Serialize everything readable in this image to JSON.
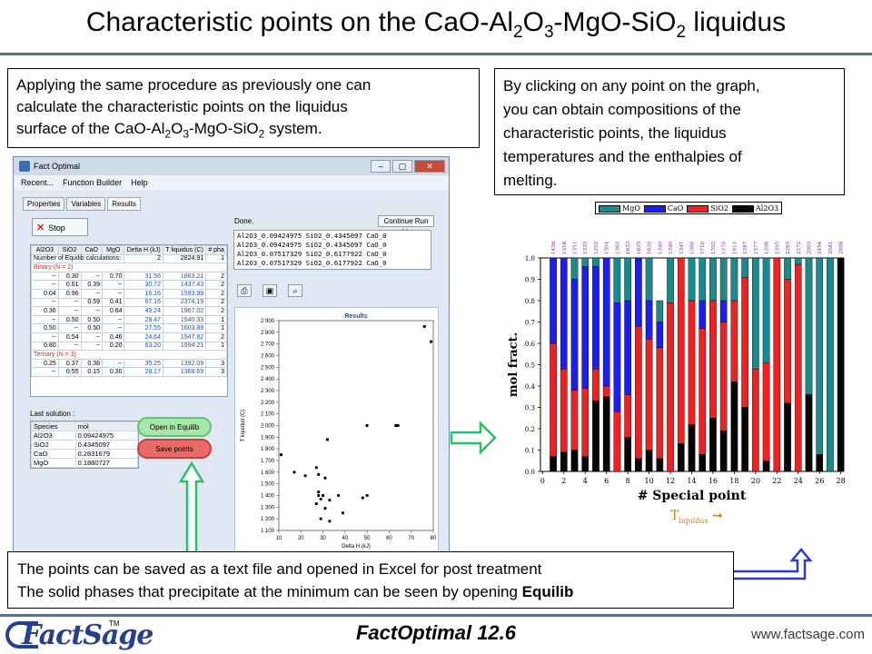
{
  "slide": {
    "title_parts": {
      "a": "Characteristic points on the CaO-Al",
      "s1": "2",
      "b": "O",
      "s2": "3",
      "c": "-MgO-SiO",
      "s3": "2",
      "d": " liquidus"
    },
    "intro": {
      "line1": "Applying the same procedure as previously one can",
      "line2": "calculate the characteristic points on the liquidus",
      "line3a": "surface of the CaO-Al",
      "sub1": "2",
      "line3b": "O",
      "sub2": "3",
      "line3c": "-MgO-SiO",
      "sub3": "2",
      "line3d": "  system."
    },
    "hint": {
      "line1": "By clicking on any point on the graph,",
      "line2": "you can obtain compositions of the",
      "line3": "characteristic points, the liquidus",
      "line4": "temperatures and the enthalpies of",
      "line5": "melting."
    },
    "note": {
      "line1": "The points can be saved as a text file and opened in Excel for post treatment",
      "line2a": "The solid phases that precipitate at the minimum can be seen by opening ",
      "line2b": "Equilib"
    },
    "footer": {
      "app_version": "FactOptimal   12.6",
      "url": "www.factsage.com",
      "logo_text": "FactSage",
      "logo_tm": "TM"
    }
  },
  "app": {
    "window_title": "Fact Optimal",
    "window_buttons": [
      "–",
      "▢",
      "✕"
    ],
    "menu": [
      "Recent...",
      "Function Builder",
      "Help"
    ],
    "tabs": [
      "Properties",
      "Variables",
      "Results"
    ],
    "stop_label": "Stop",
    "done_label": "Done.",
    "continue_label": "Continue Run >>",
    "log_lines": [
      "Al2O3_0.09424975 SiO2_0.4345097 CaO_0",
      "Al2O3_0.09424975 SiO2_0.4345097 CaO_0",
      "Al2O3_0.07517329 SiO2_0.6177922 CaO_0",
      "Al2O3_0.07517329 SiO2_0.6177922 CaO_0"
    ],
    "grid": {
      "headers": [
        "Al2O3",
        "SiO2",
        "CaO",
        "MgO",
        "Delta H (kJ)",
        "T liquidus (C)",
        "# pha"
      ],
      "info_label": "Number of Equilib calculations:",
      "info_values": [
        "2",
        "2824.91",
        "1"
      ],
      "binary_label": "Binary (N = 2)",
      "binary_rows": [
        [
          "--",
          "0.30",
          "--",
          "0.70",
          "31.56",
          "1863.21",
          "2"
        ],
        [
          "--",
          "0.61",
          "0.39",
          "--",
          "30.72",
          "1437.43",
          "2"
        ],
        [
          "0.04",
          "0.96",
          "--",
          "--",
          "16.16",
          "1593.99",
          "2"
        ],
        [
          "--",
          "--",
          "0.59",
          "0.41",
          "67.16",
          "2374.19",
          "2"
        ],
        [
          "0.36",
          "--",
          "--",
          "0.64",
          "49.24",
          "1967.02",
          "2"
        ],
        [
          "--",
          "0.50",
          "0.50",
          "--",
          "28.47",
          "1540.33",
          "1"
        ],
        [
          "0.50",
          "--",
          "0.50",
          "--",
          "27.55",
          "1603.88",
          "1"
        ],
        [
          "--",
          "0.54",
          "--",
          "0.46",
          "24.64",
          "1547.82",
          "2"
        ],
        [
          "0.80",
          "--",
          "--",
          "0.20",
          "63.20",
          "1994.21",
          "1"
        ]
      ],
      "ternary_label": "Ternary (N = 3)",
      "ternary_rows": [
        [
          "0.25",
          "0.37",
          "0.38",
          "--",
          "35.25",
          "1392.09",
          "3"
        ],
        [
          "--",
          "0.55",
          "0.15",
          "0.30",
          "28.17",
          "1368.69",
          "3"
        ]
      ]
    },
    "last_solution_label": "Last solution :",
    "solution": {
      "headers": [
        "Species",
        "mol"
      ],
      "rows": [
        [
          "Al2O3",
          "0.09424975"
        ],
        [
          "SiO2",
          "0.4345097"
        ],
        [
          "CaO",
          "0.2831679"
        ],
        [
          "MgO",
          "0.1880727"
        ]
      ]
    },
    "open_equilib_label": "Open in Equilib",
    "save_points_label": "Save points"
  },
  "chart_data": [
    {
      "type": "scatter",
      "title": "Results",
      "xlabel": "Delta H (kJ)",
      "ylabel": "T liquidus (C)",
      "xlim": [
        10,
        80
      ],
      "ylim": [
        1100,
        2900
      ],
      "xticks": [
        10,
        20,
        30,
        40,
        50,
        60,
        70,
        80
      ],
      "yticks": [
        1100,
        1200,
        1300,
        1400,
        1500,
        1600,
        1700,
        1800,
        1900,
        2000,
        2100,
        2200,
        2300,
        2400,
        2500,
        2600,
        2700,
        2800,
        2900
      ],
      "points": [
        [
          11,
          1750
        ],
        [
          17,
          1600
        ],
        [
          22,
          1570
        ],
        [
          27,
          1640
        ],
        [
          27,
          1330
        ],
        [
          28,
          1580
        ],
        [
          28,
          1430
        ],
        [
          28,
          1400
        ],
        [
          29,
          1370
        ],
        [
          29,
          1200
        ],
        [
          30,
          1400
        ],
        [
          30,
          1400
        ],
        [
          31,
          1550
        ],
        [
          31,
          1290
        ],
        [
          32,
          1880
        ],
        [
          33,
          1180
        ],
        [
          33,
          1360
        ],
        [
          37,
          1400
        ],
        [
          39,
          1250
        ],
        [
          48,
          1380
        ],
        [
          50,
          1400
        ],
        [
          50,
          2000
        ],
        [
          63,
          2000
        ],
        [
          64,
          2000
        ],
        [
          76,
          2850
        ],
        [
          79,
          2720
        ]
      ]
    },
    {
      "type": "bar",
      "stacked": true,
      "xlabel": "# Special point",
      "ylabel": "mol fract.",
      "ylim": [
        0,
        1.0
      ],
      "yticks": [
        0.0,
        0.1,
        0.2,
        0.3,
        0.4,
        0.5,
        0.6,
        0.7,
        0.8,
        0.9,
        1.0
      ],
      "xticks": [
        0,
        2,
        4,
        6,
        8,
        10,
        12,
        14,
        16,
        18,
        20,
        22,
        24,
        26,
        28
      ],
      "legend": "top",
      "colors": {
        "MgO": "#1a8a8c",
        "CaO": "#1d1df0",
        "SiO2": "#ee2222",
        "Al2O3": "#050505"
      },
      "series_names": [
        "MgO",
        "CaO",
        "SiO2",
        "Al2O3"
      ],
      "temperature_labels": [
        "1436",
        "1316",
        "1351",
        "1335",
        "1292",
        "1304",
        "1363",
        "1633",
        "1635",
        "1630",
        "1340",
        "1340",
        "1347",
        "1368",
        "1710",
        "1392",
        "1370",
        "1813",
        "1387",
        "1377",
        "1396",
        "1395",
        "2265",
        "2172",
        "2009",
        "2454",
        "2581",
        "2886"
      ],
      "temperature_legend_base": "T",
      "temperature_legend_sub": "liquidus",
      "stacks": [
        [
          0.0,
          0.4,
          0.53,
          0.07
        ],
        [
          0.0,
          0.52,
          0.39,
          0.09
        ],
        [
          0.1,
          0.52,
          0.28,
          0.1
        ],
        [
          0.04,
          0.57,
          0.32,
          0.07
        ],
        [
          0.04,
          0.48,
          0.15,
          0.33
        ],
        [
          0.0,
          0.6,
          0.05,
          0.35
        ],
        [
          0.21,
          0.51,
          0.28,
          0.0
        ],
        [
          0.2,
          0.44,
          0.2,
          0.16
        ],
        [
          0.0,
          0.32,
          0.62,
          0.06
        ],
        [
          0.2,
          0.18,
          0.52,
          0.1
        ],
        [
          0.1,
          0.12,
          0.52,
          0.06
        ],
        [
          0.21,
          0.0,
          0.79,
          0.0
        ],
        [
          0.0,
          0.0,
          0.87,
          0.13
        ],
        [
          0.2,
          0.0,
          0.58,
          0.22
        ],
        [
          0.2,
          0.13,
          0.59,
          0.08
        ],
        [
          0.2,
          0.0,
          0.55,
          0.25
        ],
        [
          0.2,
          0.1,
          0.51,
          0.19
        ],
        [
          0.2,
          0.0,
          0.38,
          0.42
        ],
        [
          0.09,
          0.0,
          0.61,
          0.3
        ],
        [
          0.52,
          0.0,
          0.48,
          0.0
        ],
        [
          0.49,
          0.0,
          0.46,
          0.05
        ],
        [
          0.0,
          0.0,
          1.0,
          0.0
        ],
        [
          0.1,
          0.0,
          0.58,
          0.32
        ],
        [
          0.03,
          0.0,
          0.97,
          0.0
        ],
        [
          0.64,
          0.0,
          0.0,
          0.36
        ],
        [
          0.92,
          0.0,
          0.0,
          0.08
        ],
        [
          1.0,
          0.0,
          0.0,
          0.0
        ],
        [
          0.0,
          0.0,
          0.0,
          1.0
        ]
      ]
    }
  ]
}
